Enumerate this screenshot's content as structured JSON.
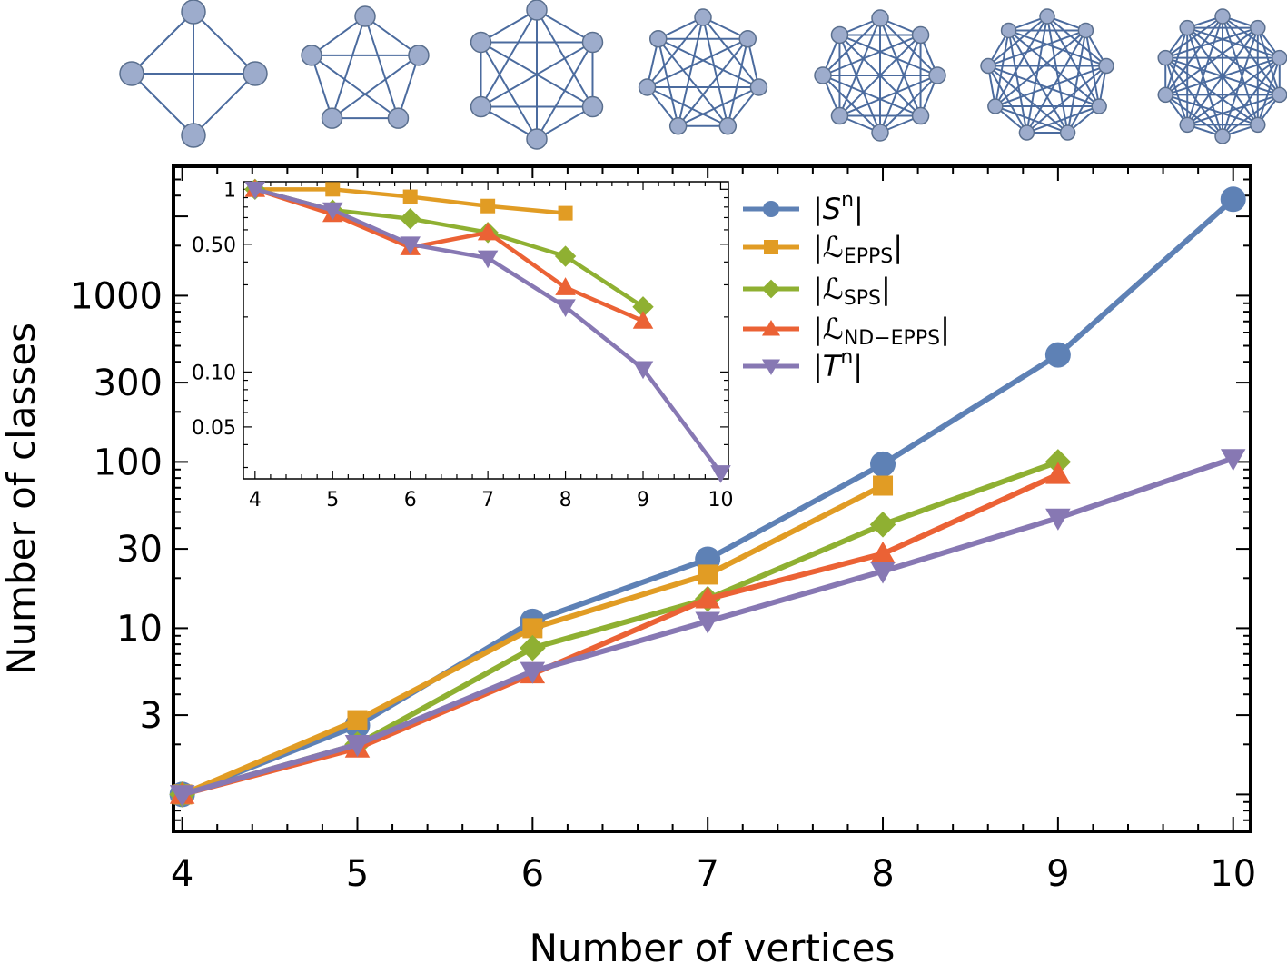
{
  "chart_data": {
    "type": "line",
    "title": "",
    "xlabel": "Number of vertices",
    "ylabel": "Number of classes",
    "yscale": "log",
    "x": [
      4,
      5,
      6,
      7,
      8,
      9,
      10
    ],
    "xlim": [
      3.95,
      10.1
    ],
    "ylim": [
      0.6,
      6000
    ],
    "x_ticks": [
      "4",
      "5",
      "6",
      "7",
      "8",
      "9",
      "10"
    ],
    "y_ticks": [
      {
        "value": 3,
        "label": "3"
      },
      {
        "value": 10,
        "label": "10"
      },
      {
        "value": 30,
        "label": "30"
      },
      {
        "value": 100,
        "label": "100"
      },
      {
        "value": 300,
        "label": "300"
      },
      {
        "value": 1000,
        "label": "1000"
      }
    ],
    "colors": {
      "S": "#5e81b5",
      "L_EPPS": "#e19c24",
      "L_SPS": "#8fb032",
      "L_ND": "#eb6235",
      "T": "#8778b3",
      "graph_node": "#9daccc",
      "graph_edge": "#4b6b9e"
    },
    "legend": {
      "position": "top-right inside",
      "entries": [
        {
          "key": "S",
          "prefix": "|",
          "main": "S",
          "sup": "n",
          "sub": "",
          "suffix": "|",
          "marker": "circle"
        },
        {
          "key": "L_EPPS",
          "prefix": "|",
          "main": "ℒ",
          "sup": "",
          "sub": "EPPS",
          "suffix": "|",
          "marker": "square"
        },
        {
          "key": "L_SPS",
          "prefix": "|",
          "main": "ℒ",
          "sup": "",
          "sub": "SPS",
          "suffix": "|",
          "marker": "diamond"
        },
        {
          "key": "L_ND",
          "prefix": "|",
          "main": "ℒ",
          "sup": "",
          "sub": "ND−EPPS",
          "suffix": "|",
          "marker": "triangle-up"
        },
        {
          "key": "T",
          "prefix": "|",
          "main": "T",
          "sup": "n",
          "sub": "",
          "suffix": "|",
          "marker": "triangle-down"
        }
      ]
    },
    "series": [
      {
        "key": "S",
        "name": "|S^n|",
        "marker": "circle",
        "x": [
          4,
          5,
          6,
          7,
          8,
          9,
          10
        ],
        "values": [
          1,
          2.6,
          11,
          26,
          97,
          440,
          3800
        ]
      },
      {
        "key": "L_EPPS",
        "name": "|ℒ_EPPS|",
        "marker": "square",
        "x": [
          4,
          5,
          6,
          7,
          8
        ],
        "values": [
          1,
          2.8,
          10,
          21,
          72
        ]
      },
      {
        "key": "L_SPS",
        "name": "|ℒ_SPS|",
        "marker": "diamond",
        "x": [
          4,
          5,
          6,
          7,
          8,
          9
        ],
        "values": [
          1,
          2,
          7.6,
          15,
          42,
          100
        ]
      },
      {
        "key": "L_ND",
        "name": "|ℒ_ND−EPPS|",
        "marker": "triangle-up",
        "x": [
          4,
          5,
          6,
          7,
          8,
          9
        ],
        "values": [
          1,
          1.9,
          5.3,
          15,
          28,
          84
        ]
      },
      {
        "key": "T",
        "name": "|T^n|",
        "marker": "triangle-down",
        "x": [
          4,
          5,
          6,
          7,
          8,
          9,
          10
        ],
        "values": [
          1,
          2,
          5.5,
          11,
          22,
          46,
          105
        ]
      }
    ],
    "inset": {
      "type": "line",
      "yscale": "log",
      "xlim": [
        3.85,
        10.1
      ],
      "ylim": [
        0.026,
        1.1
      ],
      "x_ticks": [
        "4",
        "5",
        "6",
        "7",
        "8",
        "9",
        "10"
      ],
      "y_ticks": [
        {
          "value": 0.05,
          "label": "0.05"
        },
        {
          "value": 0.1,
          "label": "0.10"
        },
        {
          "value": 0.5,
          "label": "0.50"
        },
        {
          "value": 1,
          "label": "1"
        }
      ],
      "series": [
        {
          "key": "L_EPPS",
          "marker": "square",
          "x": [
            4,
            5,
            6,
            7,
            8
          ],
          "values": [
            1,
            1,
            0.91,
            0.81,
            0.74
          ]
        },
        {
          "key": "L_SPS",
          "marker": "diamond",
          "x": [
            4,
            5,
            6,
            7,
            8,
            9
          ],
          "values": [
            1,
            0.77,
            0.69,
            0.58,
            0.43,
            0.227
          ]
        },
        {
          "key": "L_ND",
          "marker": "triangle-up",
          "x": [
            4,
            5,
            6,
            7,
            8,
            9
          ],
          "values": [
            1,
            0.73,
            0.48,
            0.58,
            0.29,
            0.19
          ]
        },
        {
          "key": "T",
          "marker": "triangle-down",
          "x": [
            4,
            5,
            6,
            7,
            8,
            9,
            10
          ],
          "values": [
            1,
            0.77,
            0.5,
            0.42,
            0.227,
            0.104,
            0.028
          ]
        }
      ]
    },
    "graphs": [
      {
        "vertices": 4,
        "type": "complete"
      },
      {
        "vertices": 5,
        "type": "complete"
      },
      {
        "vertices": 6,
        "type": "complete"
      },
      {
        "vertices": 7,
        "type": "complete"
      },
      {
        "vertices": 8,
        "type": "complete"
      },
      {
        "vertices": 9,
        "type": "complete"
      },
      {
        "vertices": 10,
        "type": "complete"
      }
    ]
  }
}
